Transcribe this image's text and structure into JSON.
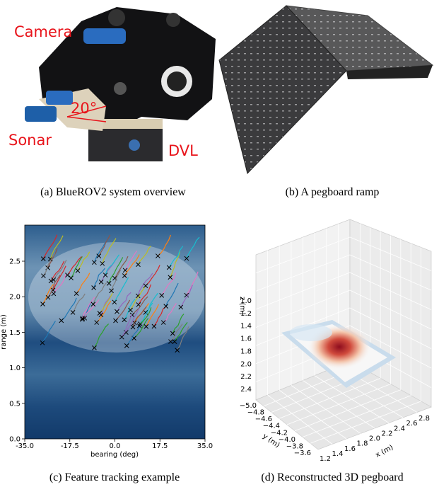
{
  "figure": {
    "panel_a": {
      "caption": "(a) BlueROV2 system overview",
      "labels": [
        "Camera",
        "20°",
        "Sonar",
        "DVL"
      ]
    },
    "panel_b": {
      "caption": "(b) A pegboard ramp"
    },
    "panel_c": {
      "caption": "(c) Feature tracking example",
      "x_label": "bearing (deg)",
      "y_label": "range (m)",
      "x_ticks": [
        "-35.0",
        "-17.5",
        "0.0",
        "17.5",
        "35.0"
      ],
      "y_ticks": [
        "0.0",
        "0.5",
        "1.0",
        "1.5",
        "2.0",
        "2.5"
      ]
    },
    "panel_d": {
      "caption": "(d) Reconstructed 3D pegboard",
      "x_label": "x (m)",
      "y_label": "y (m)",
      "z_label": "z (m)",
      "x_ticks": [
        "1.2",
        "1.4",
        "1.6",
        "1.8",
        "2.0",
        "2.2",
        "2.4",
        "2.6",
        "2.8"
      ],
      "y_ticks": [
        "−5.0",
        "−4.8",
        "−4.6",
        "−4.4",
        "−4.2",
        "−4.0",
        "−3.8",
        "−3.6"
      ],
      "z_ticks": [
        "1.0",
        "1.2",
        "1.4",
        "1.6",
        "1.8",
        "2.0",
        "2.2",
        "2.4"
      ]
    }
  }
}
